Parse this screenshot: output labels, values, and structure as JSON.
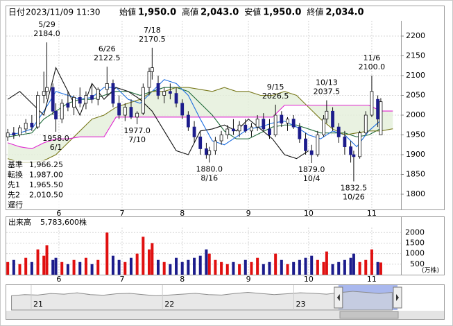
{
  "header": {
    "date_label": "日付",
    "datetime": "2023/11/09 11:30",
    "fields": [
      {
        "label": "始値",
        "value": "1,950.0",
        "color": "#000000"
      },
      {
        "label": "高値",
        "value": "2,043.0",
        "color": "#e00000"
      },
      {
        "label": "安値",
        "value": "1,950.0",
        "color": "#008000"
      },
      {
        "label": "終値",
        "value": "2,034.0",
        "color": "#000000"
      }
    ]
  },
  "chart_data": [
    {
      "type": "candlestick",
      "x": [
        0,
        2,
        4,
        6,
        8,
        10,
        12,
        13,
        15,
        16,
        18,
        20,
        22,
        24,
        26,
        28,
        30,
        33,
        35,
        37,
        39,
        41,
        43,
        45,
        47,
        48,
        50,
        52,
        54,
        56,
        58,
        60,
        62,
        64,
        66,
        67,
        69,
        71,
        73,
        75,
        77,
        79,
        81,
        83,
        85,
        87,
        89,
        91,
        93,
        95,
        97,
        99,
        101,
        103,
        105,
        106,
        108,
        110,
        112,
        114,
        115,
        117,
        119,
        121,
        123,
        124
      ],
      "open": [
        1945,
        1955,
        1950,
        1965,
        1980,
        1970,
        2050,
        2060,
        2070,
        2010,
        1990,
        2030,
        2020,
        2045,
        2030,
        2050,
        2040,
        2065,
        2080,
        2030,
        2000,
        2020,
        1995,
        2005,
        2070,
        2110,
        2080,
        2050,
        2060,
        2055,
        2030,
        2000,
        1970,
        1945,
        1915,
        1900,
        1910,
        1935,
        1950,
        1965,
        1960,
        1975,
        1960,
        1970,
        1990,
        1965,
        1950,
        2000,
        1980,
        1990,
        1970,
        1940,
        1910,
        1900,
        1950,
        1990,
        2010,
        1970,
        1945,
        1920,
        1900,
        1895,
        1955,
        2000,
        2040,
        1950
      ],
      "high": [
        1965,
        1970,
        1975,
        1990,
        2000,
        2060,
        2110,
        2184,
        2080,
        2030,
        2040,
        2060,
        2050,
        2070,
        2060,
        2080,
        2070,
        2122.5,
        2090,
        2050,
        2030,
        2040,
        2010,
        2080,
        2120,
        2170.5,
        2100,
        2070,
        2080,
        2070,
        2040,
        2010,
        1985,
        1960,
        1930,
        1920,
        1945,
        1960,
        1975,
        1990,
        1985,
        1990,
        1980,
        2000,
        2005,
        1990,
        2026.5,
        2010,
        1995,
        2000,
        1980,
        1955,
        1925,
        1960,
        2000,
        2037.5,
        2020,
        1980,
        1960,
        1935,
        1910,
        1960,
        2010,
        2100,
        2050,
        2043
      ],
      "low": [
        1935,
        1940,
        1945,
        1955,
        1960,
        1965,
        2030,
        2040,
        2000,
        1958,
        1980,
        2010,
        2000,
        2020,
        2015,
        2030,
        2025,
        2050,
        2020,
        1990,
        1985,
        1990,
        1977,
        2000,
        2050,
        2090,
        2040,
        2030,
        2040,
        2020,
        1990,
        1960,
        1930,
        1900,
        1890,
        1880,
        1900,
        1925,
        1940,
        1950,
        1945,
        1955,
        1945,
        1960,
        1960,
        1940,
        1945,
        1970,
        1960,
        1965,
        1930,
        1900,
        1879,
        1895,
        1945,
        1980,
        1960,
        1930,
        1900,
        1880,
        1832.5,
        1890,
        1950,
        1995,
        1970,
        1950
      ],
      "close": [
        1955,
        1950,
        1968,
        1980,
        1970,
        2050,
        2060,
        2070,
        2010,
        1990,
        2030,
        2020,
        2045,
        2030,
        2050,
        2040,
        2065,
        2080,
        2030,
        2000,
        2020,
        1995,
        2005,
        2070,
        2110,
        2120,
        2050,
        2060,
        2055,
        2030,
        2000,
        1970,
        1945,
        1915,
        1900,
        1910,
        1935,
        1950,
        1965,
        1960,
        1975,
        1960,
        1970,
        1990,
        1965,
        1950,
        2000,
        1980,
        1990,
        1970,
        1940,
        1910,
        1900,
        1950,
        1990,
        2010,
        1970,
        1945,
        1920,
        1900,
        1895,
        1955,
        2000,
        2060,
        1990,
        2034
      ],
      "up_color": "#ffffff",
      "down_color": "#1c1c8c",
      "xlim": [
        -0.5,
        130.7
      ],
      "xticks": [
        {
          "value": 17,
          "label": "6"
        },
        {
          "value": 38,
          "label": "7"
        },
        {
          "value": 58,
          "label": "8"
        },
        {
          "value": 80,
          "label": "9"
        },
        {
          "value": 100,
          "label": "10"
        },
        {
          "value": 121,
          "label": "11"
        }
      ],
      "ylim": [
        1761.4,
        2238.6
      ],
      "yticks": [
        1800,
        1850,
        1900,
        1950,
        2000,
        2050,
        2100,
        2150,
        2200
      ],
      "grid": true,
      "cloud_color": "#e3efd9",
      "annotations": [
        {
          "date": "5/29",
          "price": {
            "value": 2184,
            "label": "2184.0"
          },
          "x": 13,
          "side": "high"
        },
        {
          "date": "6/1",
          "price": {
            "value": 1958,
            "label": "1958.0"
          },
          "x": 16,
          "side": "low"
        },
        {
          "date": "6/26",
          "price": {
            "value": 2122.5,
            "label": "2122.5"
          },
          "x": 33,
          "side": "high"
        },
        {
          "date": "7/10",
          "price": {
            "value": 1977,
            "label": "1977.0"
          },
          "x": 43,
          "side": "low"
        },
        {
          "date": "7/18",
          "price": {
            "value": 2170.5,
            "label": "2170.5"
          },
          "x": 48,
          "side": "high"
        },
        {
          "date": "8/16",
          "price": {
            "value": 1880,
            "label": "1880.0"
          },
          "x": 67,
          "side": "low"
        },
        {
          "date": "9/15",
          "price": {
            "value": 2026.5,
            "label": "2026.5"
          },
          "x": 89,
          "side": "high"
        },
        {
          "date": "10/4",
          "price": {
            "value": 1879,
            "label": "1879.0"
          },
          "x": 101,
          "side": "low"
        },
        {
          "date": "10/13",
          "price": {
            "value": 2037.5,
            "label": "2037.5"
          },
          "x": 106,
          "side": "high"
        },
        {
          "date": "10/26",
          "price": {
            "value": 1832.5,
            "label": "1832.5"
          },
          "x": 115,
          "side": "low"
        },
        {
          "date": "11/6",
          "price": {
            "value": 2100,
            "label": "2100.0"
          },
          "x": 121,
          "side": "high"
        }
      ],
      "series": [
        {
          "name": "基準",
          "color": "#1f6b3a",
          "legend_value": {
            "value": 1966.25,
            "label": "1,966.25"
          },
          "x": [
            0,
            4,
            8,
            12,
            16,
            20,
            24,
            28,
            32,
            36,
            40,
            44,
            48,
            52,
            56,
            60,
            64,
            68,
            72,
            76,
            80,
            84,
            88,
            92,
            96,
            100,
            104,
            108,
            112,
            116,
            120,
            124
          ],
          "values": [
            1945,
            1950,
            1955,
            1990,
            2010,
            2030,
            2040,
            2040,
            2050,
            2060,
            2060,
            2050,
            2060,
            2070,
            2070,
            2060,
            2030,
            2000,
            1960,
            1940,
            1940,
            1955,
            1970,
            1975,
            1975,
            1965,
            1955,
            1955,
            1955,
            1945,
            1950,
            1966.25
          ]
        },
        {
          "name": "転換",
          "color": "#1e6fe0",
          "legend_value": {
            "value": 1987,
            "label": "1,987.00"
          },
          "x": [
            0,
            4,
            8,
            12,
            16,
            20,
            24,
            28,
            32,
            36,
            40,
            44,
            48,
            52,
            56,
            60,
            64,
            68,
            72,
            76,
            80,
            84,
            88,
            92,
            96,
            100,
            104,
            108,
            112,
            116,
            120,
            124
          ],
          "values": [
            1950,
            1955,
            1965,
            2010,
            2060,
            2050,
            2040,
            2045,
            2070,
            2070,
            2040,
            2030,
            2060,
            2090,
            2080,
            2050,
            1990,
            1935,
            1925,
            1945,
            1965,
            1970,
            1980,
            1985,
            1970,
            1950,
            1940,
            1960,
            1950,
            1920,
            1960,
            1987
          ]
        },
        {
          "name": "先1",
          "color": "#7a7a1e",
          "legend_value": {
            "value": 1965.5,
            "label": "1,965.50"
          },
          "cloud": true,
          "x": [
            0,
            4,
            8,
            12,
            16,
            20,
            24,
            28,
            32,
            36,
            40,
            44,
            48,
            52,
            56,
            60,
            64,
            68,
            72,
            76,
            80,
            84,
            88,
            92,
            96,
            100,
            104,
            108,
            112,
            116,
            120,
            124,
            128
          ],
          "values": [
            1890,
            1880,
            1880,
            1885,
            1900,
            1930,
            1960,
            1990,
            2000,
            2020,
            2030,
            2040,
            2060,
            2060,
            2070,
            2070,
            2065,
            2060,
            2070,
            2060,
            2060,
            2050,
            2050,
            2060,
            2050,
            2020,
            1990,
            1965,
            1950,
            1955,
            1960,
            1960,
            1965.5
          ]
        },
        {
          "name": "先2",
          "color": "#e020d0",
          "legend_value": {
            "value": 2010.5,
            "label": "2,010.50"
          },
          "cloud": true,
          "x": [
            0,
            4,
            8,
            12,
            16,
            20,
            24,
            28,
            32,
            36,
            40,
            44,
            48,
            52,
            56,
            60,
            64,
            68,
            72,
            76,
            80,
            84,
            88,
            92,
            96,
            100,
            104,
            108,
            112,
            116,
            120,
            124,
            128
          ],
          "values": [
            1930,
            1920,
            1915,
            1930,
            1940,
            1940,
            1945,
            1945,
            1945,
            1995,
            1995,
            1995,
            1995,
            1995,
            1995,
            1995,
            1995,
            1995,
            1995,
            1995,
            1995,
            1995,
            1995,
            2025,
            2025,
            2025,
            2025,
            2025,
            2025,
            2025,
            2025,
            2010.5,
            2010.5
          ]
        },
        {
          "name": "遅行",
          "color": "#111111",
          "x": [
            0,
            4,
            8,
            12,
            16,
            20,
            24,
            28,
            32,
            36,
            40,
            44,
            48,
            52,
            56,
            60,
            64,
            68,
            72,
            76,
            80,
            84,
            88,
            92,
            96,
            100
          ],
          "values": [
            2040,
            2060,
            2030,
            2000,
            2120,
            2060,
            2000,
            2080,
            2040,
            2070,
            2060,
            2040,
            2010,
            1960,
            1910,
            1900,
            1960,
            1965,
            1975,
            1960,
            1990,
            1965,
            1940,
            1900,
            1890,
            1910
          ]
        }
      ]
    },
    {
      "type": "bar",
      "title": "出来高",
      "total": {
        "value": 578.36,
        "label": "5,783,600株"
      },
      "unit": "(万株)",
      "x": [
        0,
        2,
        4,
        6,
        8,
        10,
        12,
        13,
        15,
        16,
        18,
        20,
        22,
        24,
        26,
        28,
        30,
        33,
        35,
        37,
        39,
        41,
        43,
        45,
        47,
        48,
        50,
        52,
        54,
        56,
        58,
        60,
        62,
        64,
        66,
        67,
        69,
        71,
        73,
        75,
        77,
        79,
        81,
        83,
        85,
        87,
        89,
        91,
        93,
        95,
        97,
        99,
        101,
        103,
        105,
        106,
        108,
        110,
        112,
        114,
        115,
        117,
        119,
        121,
        123,
        124
      ],
      "values": [
        600,
        700,
        500,
        800,
        600,
        1200,
        900,
        1400,
        700,
        800,
        600,
        500,
        700,
        600,
        800,
        500,
        700,
        2000,
        900,
        700,
        600,
        800,
        1000,
        1800,
        1200,
        1500,
        700,
        600,
        500,
        800,
        600,
        700,
        800,
        900,
        1200,
        1000,
        700,
        600,
        500,
        600,
        500,
        700,
        600,
        800,
        500,
        600,
        1000,
        700,
        500,
        600,
        700,
        800,
        900,
        700,
        600,
        1100,
        500,
        600,
        700,
        800,
        1000,
        600,
        700,
        1200,
        600,
        578.36
      ],
      "up_color": "#e01010",
      "down_color": "#1c1c8c",
      "xlim": [
        -0.5,
        130.7
      ],
      "xticks": [
        {
          "value": 17,
          "label": "6"
        },
        {
          "value": 38,
          "label": "7"
        },
        {
          "value": 58,
          "label": "8"
        },
        {
          "value": 80,
          "label": "9"
        },
        {
          "value": 100,
          "label": "10"
        },
        {
          "value": 121,
          "label": "11"
        }
      ],
      "ylim": [
        0,
        2767
      ],
      "yticks": [
        500,
        1000,
        1500,
        2000
      ],
      "grid": true
    },
    {
      "type": "area",
      "x": [
        20.85,
        20.95,
        21.05,
        21.15,
        21.25,
        21.35,
        21.45,
        21.55,
        21.65,
        21.75,
        21.85,
        21.95,
        22.05,
        22.15,
        22.25,
        22.35,
        22.45,
        22.55,
        22.65,
        22.75,
        22.85,
        22.95,
        23.05,
        23.15,
        23.25,
        23.35,
        23.45,
        23.55,
        23.65,
        23.75
      ],
      "values": [
        1850,
        1900,
        1880,
        1950,
        1920,
        1980,
        1900,
        1870,
        1940,
        1960,
        1900,
        1850,
        1880,
        1920,
        1960,
        1900,
        1880,
        1950,
        2000,
        1950,
        1900,
        1940,
        1980,
        1960,
        1920,
        1990,
        2050,
        2000,
        1950,
        2000
      ],
      "xlim": [
        20.81,
        23.79
      ],
      "xticks": [
        21,
        22,
        23
      ],
      "ylim": [
        1200,
        2300
      ],
      "color": "#8a8a8a",
      "window": [
        23.34,
        23.79
      ],
      "window_color": "#a9b8ee"
    }
  ]
}
